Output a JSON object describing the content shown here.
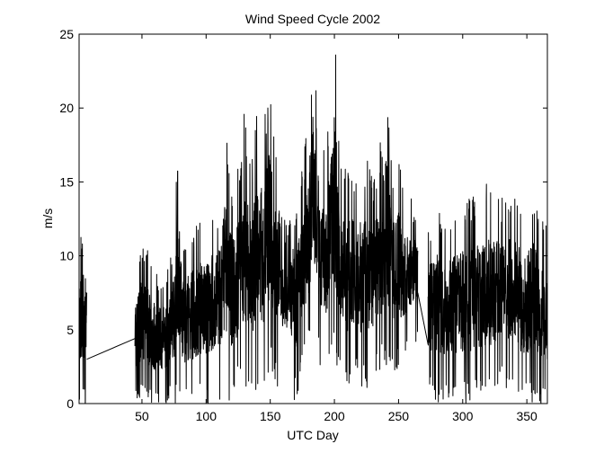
{
  "chart_data": {
    "type": "line",
    "title": "Wind Speed Cycle 2002",
    "xlabel": "UTC Day",
    "ylabel": "m/s",
    "xlim": [
      1,
      366
    ],
    "ylim": [
      0,
      25
    ],
    "xticks": [
      50,
      100,
      150,
      200,
      250,
      300,
      350
    ],
    "yticks": [
      0,
      5,
      10,
      15,
      20,
      25
    ],
    "grid": false,
    "legend": "none",
    "line_color": "#000000",
    "series": [
      {
        "segments": [
          {
            "x_start": 1,
            "x_end": 7,
            "dx": 0.08,
            "seed": 11,
            "envelope": [
              [
                1,
                0,
                11.5
              ],
              [
                7,
                0,
                12
              ]
            ]
          },
          {
            "x": [
              7,
              44.5
            ],
            "y": [
              3.0,
              4.4
            ]
          },
          {
            "x_start": 44.5,
            "x_end": 265,
            "dx": 0.125,
            "seed": 23,
            "envelope": [
              [
                44.5,
                0,
                9
              ],
              [
                50,
                0,
                11.5
              ],
              [
                60,
                0,
                9
              ],
              [
                70,
                0,
                9
              ],
              [
                75,
                0,
                12
              ],
              [
                78,
                0,
                18
              ],
              [
                82,
                0,
                11
              ],
              [
                90,
                0,
                12
              ],
              [
                95,
                0,
                13.5
              ],
              [
                100,
                0,
                13
              ],
              [
                110,
                0,
                14
              ],
              [
                115,
                0,
                19
              ],
              [
                120,
                0,
                15
              ],
              [
                125,
                1,
                16
              ],
              [
                130,
                1,
                20
              ],
              [
                135,
                0.5,
                16
              ],
              [
                140,
                1,
                20
              ],
              [
                145,
                1,
                19
              ],
              [
                150,
                2,
                22.5
              ],
              [
                155,
                1,
                18
              ],
              [
                160,
                1.5,
                16
              ],
              [
                165,
                1,
                17
              ],
              [
                170,
                0,
                13.5
              ],
              [
                175,
                2,
                16
              ],
              [
                180,
                3,
                20
              ],
              [
                183,
                4,
                25
              ],
              [
                186,
                4,
                21
              ],
              [
                190,
                2,
                17
              ],
              [
                195,
                2,
                19
              ],
              [
                200,
                3,
                25
              ],
              [
                205,
                2,
                18
              ],
              [
                210,
                1,
                16
              ],
              [
                215,
                2,
                16
              ],
              [
                220,
                1,
                16
              ],
              [
                225,
                1,
                17
              ],
              [
                230,
                2,
                15
              ],
              [
                235,
                2,
                17
              ],
              [
                240,
                2,
                22
              ],
              [
                245,
                2,
                16
              ],
              [
                250,
                2,
                17
              ],
              [
                255,
                3,
                14
              ],
              [
                260,
                4,
                14
              ],
              [
                265,
                4,
                13
              ]
            ]
          },
          {
            "x": [
              265,
              273
            ],
            "y": [
              7.5,
              4.0
            ]
          },
          {
            "x_start": 273,
            "x_end": 366,
            "dx": 0.125,
            "seed": 37,
            "envelope": [
              [
                273,
                1,
                12
              ],
              [
                280,
                0,
                13.5
              ],
              [
                285,
                0,
                12
              ],
              [
                290,
                0,
                13
              ],
              [
                300,
                0,
                14
              ],
              [
                310,
                0,
                14
              ],
              [
                320,
                0,
                15.5
              ],
              [
                330,
                1,
                14
              ],
              [
                335,
                1,
                14.5
              ],
              [
                340,
                1,
                14.5
              ],
              [
                345,
                0,
                14
              ],
              [
                350,
                0,
                13.5
              ],
              [
                355,
                0,
                15
              ],
              [
                360,
                0,
                13
              ],
              [
                366,
                0,
                12
              ]
            ]
          }
        ]
      }
    ]
  }
}
